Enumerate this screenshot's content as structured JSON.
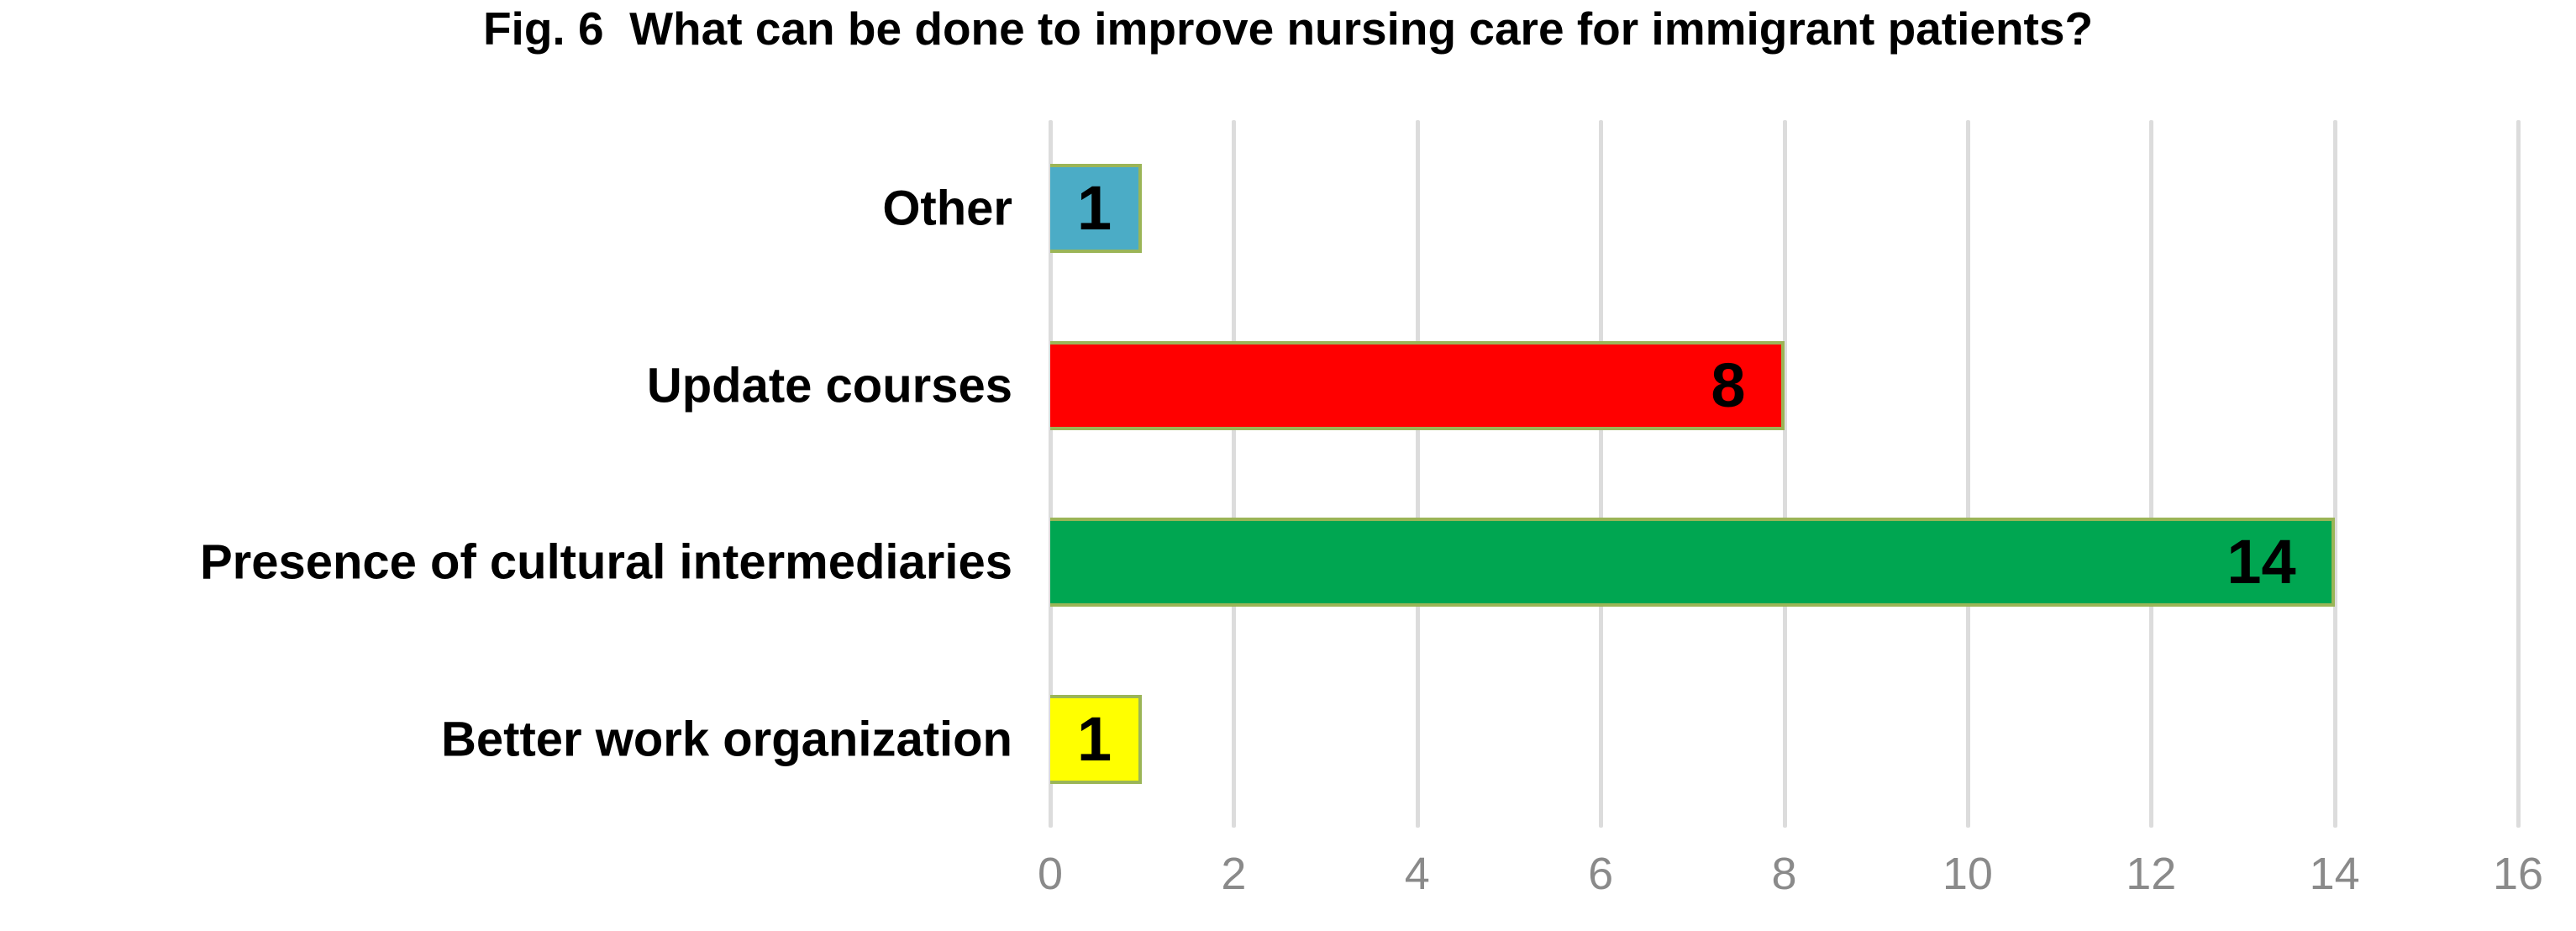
{
  "title": "Fig. 6  What can be done to improve nursing care for immigrant patients?",
  "chart_data": {
    "type": "bar",
    "orientation": "horizontal",
    "title": "Fig. 6  What can be done to improve nursing care for immigrant patients?",
    "categories": [
      "Other",
      "Update courses",
      "Presence of cultural intermediaries",
      "Better work organization"
    ],
    "values": [
      1,
      8,
      14,
      1
    ],
    "data_labels": [
      "1",
      "8",
      "14",
      "1"
    ],
    "bar_colors": [
      "#4BACC6",
      "#FF0000",
      "#00A651",
      "#FFFF00"
    ],
    "bar_border_color": "#9BB557",
    "xlabel": "",
    "ylabel": "",
    "xlim": [
      0,
      16
    ],
    "xticks": [
      0,
      2,
      4,
      6,
      8,
      10,
      12,
      14,
      16
    ],
    "grid": true,
    "gridline_color": "#DCDCDC",
    "tick_label_color": "#8A8A8A",
    "value_label_color": "#000000",
    "legend": false
  }
}
